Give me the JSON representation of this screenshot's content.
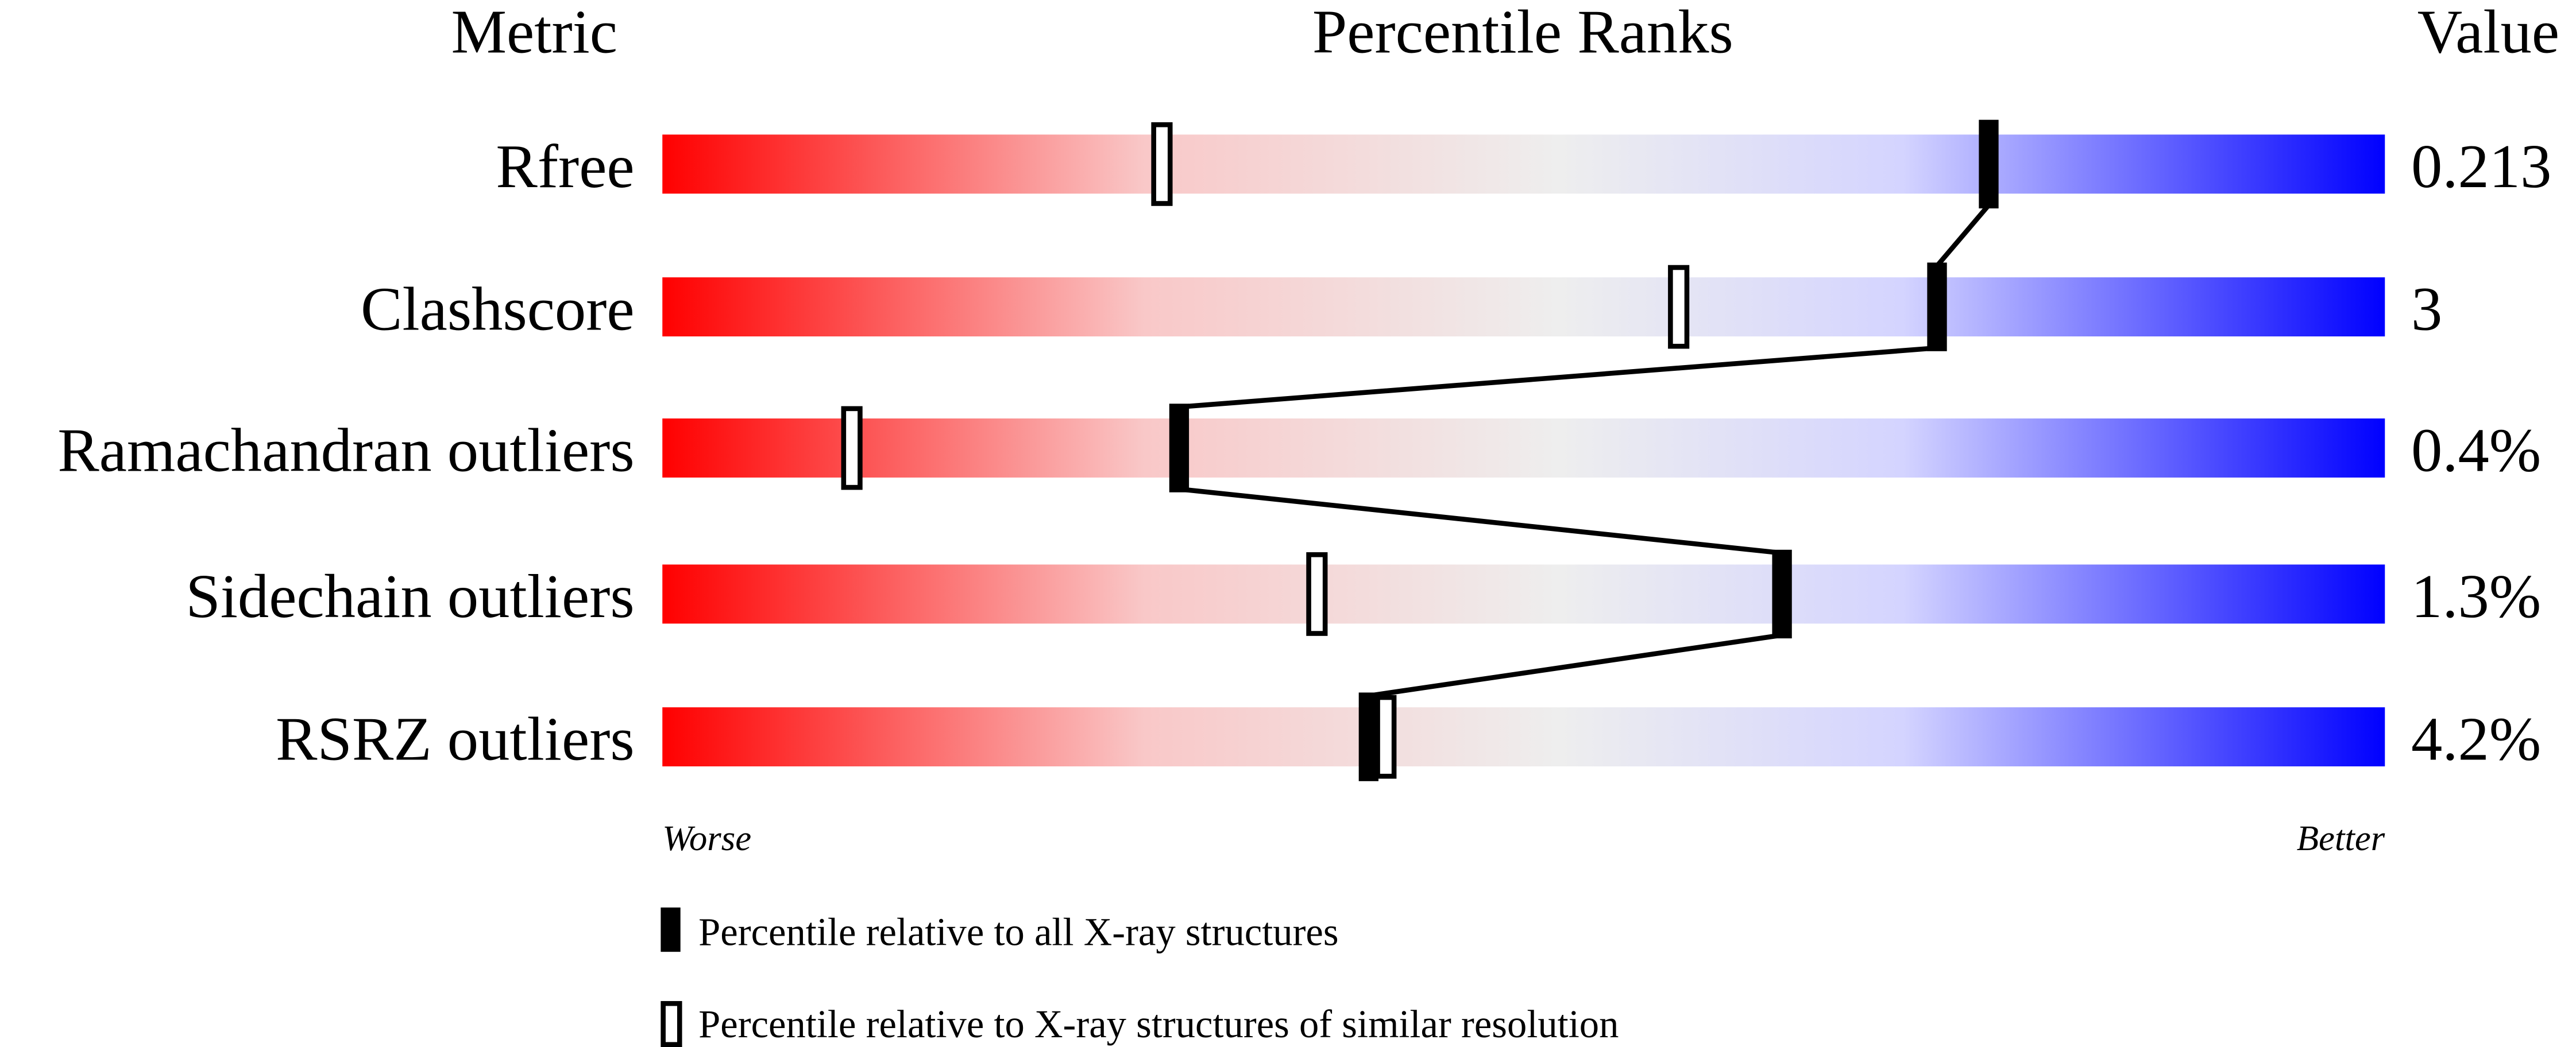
{
  "chart_data": {
    "type": "percentile-slider",
    "headers": {
      "metric": "Metric",
      "ranks": "Percentile Ranks",
      "value": "Value"
    },
    "axis": {
      "min": 0,
      "max": 100,
      "left_label": "Worse",
      "right_label": "Better"
    },
    "rows": [
      {
        "metric": "Rfree",
        "value": "0.213",
        "percentile_all": 77,
        "percentile_similar": 29
      },
      {
        "metric": "Clashscore",
        "value": "3",
        "percentile_all": 74,
        "percentile_similar": 59
      },
      {
        "metric": "Ramachandran outliers",
        "value": "0.4%",
        "percentile_all": 30,
        "percentile_similar": 11
      },
      {
        "metric": "Sidechain outliers",
        "value": "1.3%",
        "percentile_all": 65,
        "percentile_similar": 38
      },
      {
        "metric": "RSRZ outliers",
        "value": "4.2%",
        "percentile_all": 41,
        "percentile_similar": 42
      }
    ],
    "legend": [
      {
        "marker": "filled",
        "label": "Percentile relative to all X-ray structures"
      },
      {
        "marker": "open",
        "label": "Percentile relative to X-ray structures of similar resolution"
      }
    ],
    "colors": {
      "worse": "#ff0000",
      "mid": "#eeeeee",
      "better": "#0000ff",
      "marker": "#000000"
    }
  }
}
